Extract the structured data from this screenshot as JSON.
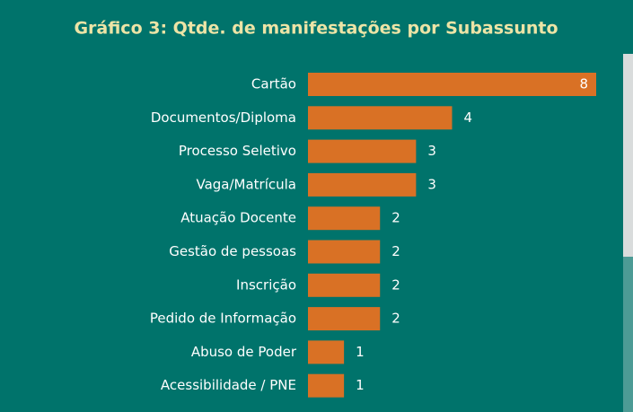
{
  "chart_data": {
    "type": "bar",
    "orientation": "horizontal",
    "title": "Gráfico 3: Qtde. de manifestações por Subassunto",
    "categories": [
      "Cartão",
      "Documentos/Diploma",
      "Processo Seletivo",
      "Vaga/Matrícula",
      "Atuação Docente",
      "Gestão de pessoas",
      "Inscrição",
      "Pedido de Informação",
      "Abuso de Poder",
      "Acessibilidade / PNE"
    ],
    "values": [
      8,
      4,
      3,
      3,
      2,
      2,
      2,
      2,
      1,
      1
    ],
    "color": "#d97125"
  }
}
